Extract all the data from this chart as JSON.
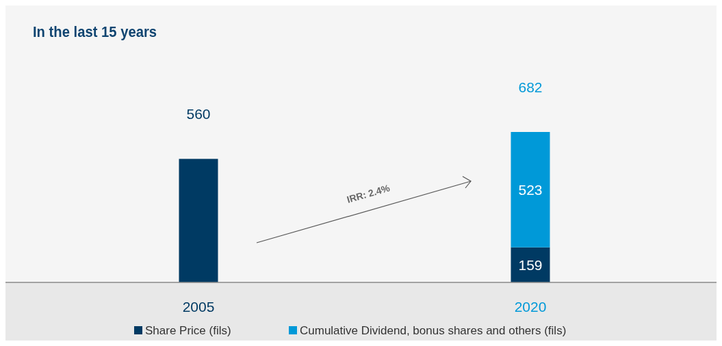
{
  "chart_data": {
    "type": "bar",
    "title": "In the last 15 years",
    "stacked": true,
    "categories": [
      "2005",
      "2020"
    ],
    "series": [
      {
        "name": "Share Price (fils)",
        "color": "#003a63",
        "values": [
          560,
          159
        ],
        "value_labels": [
          null,
          "159"
        ]
      },
      {
        "name": "Cumulative Dividend, bonus shares and others (fils)",
        "color": "#0099d8",
        "values": [
          null,
          523
        ],
        "value_labels": [
          null,
          "523"
        ]
      }
    ],
    "totals": [
      "560",
      "682"
    ],
    "annotations": [
      "IRR: 2.4%"
    ],
    "legend": "bottom"
  }
}
